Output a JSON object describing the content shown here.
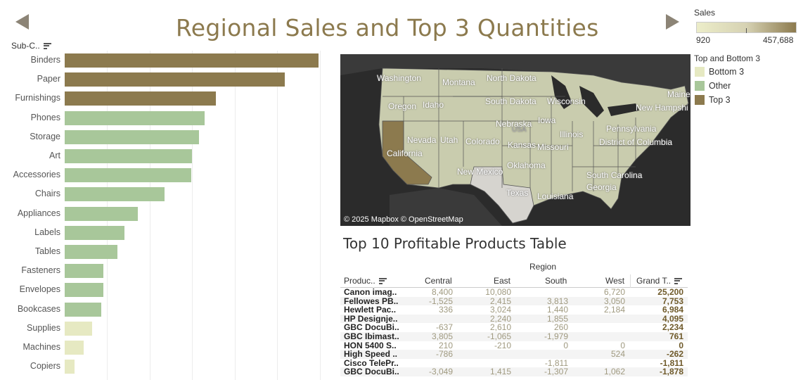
{
  "title": "Regional Sales and Top 3 Quantities",
  "bar_chart": {
    "header": "Sub-C..",
    "colors": {
      "top3": "#8c7a4e",
      "other": "#a8c79a",
      "bottom3": "#e6e9c2"
    },
    "chart_data": {
      "type": "bar",
      "orientation": "horizontal",
      "categories": [
        "Binders",
        "Paper",
        "Furnishings",
        "Phones",
        "Storage",
        "Art",
        "Accessories",
        "Chairs",
        "Appliances",
        "Labels",
        "Tables",
        "Fasteners",
        "Envelopes",
        "Bookcases",
        "Supplies",
        "Machines",
        "Copiers"
      ],
      "values": [
        5974,
        5178,
        3563,
        3289,
        3158,
        3000,
        2976,
        2356,
        1729,
        1400,
        1241,
        914,
        906,
        868,
        647,
        440,
        234
      ],
      "groups": [
        "top3",
        "top3",
        "top3",
        "other",
        "other",
        "other",
        "other",
        "other",
        "other",
        "other",
        "other",
        "other",
        "other",
        "other",
        "bottom3",
        "bottom3",
        "bottom3"
      ],
      "xlim": [
        0,
        6500
      ],
      "grid": true
    }
  },
  "map": {
    "attribution": "© 2025 Mapbox © OpenStreetMap",
    "states": [
      "Washington",
      "Montana",
      "North Dakota",
      "Oregon",
      "Idaho",
      "South Dakota",
      "Wisconsin",
      "Maine",
      "Nebraska",
      "Iowa",
      "USA",
      "New Hampshi",
      "Pennsylvania",
      "Illinois",
      "Nevada",
      "Utah",
      "Colorado",
      "Kansas",
      "Missouri",
      "District of Columbia",
      "California",
      "Oklahoma",
      "New Mexico",
      "South Carolina",
      "Georgia",
      "Texas",
      "Louisiana"
    ]
  },
  "legend": {
    "sales_title": "Sales",
    "sales_min": "920",
    "sales_max": "457,688",
    "group_title": "Top and Bottom 3",
    "groups": [
      {
        "label": "Bottom 3",
        "color": "#e6e9c2"
      },
      {
        "label": "Other",
        "color": "#a8c79a"
      },
      {
        "label": "Top 3",
        "color": "#8c7a4e"
      }
    ]
  },
  "table": {
    "title": "Top 10 Profitable Products Table",
    "region_header": "Region",
    "columns": [
      "Produc..",
      "Central",
      "East",
      "South",
      "West",
      "Grand T.."
    ],
    "rows": [
      {
        "product": "Canon imag..",
        "central": "8,400",
        "east": "10,080",
        "south": "",
        "west": "6,720",
        "grand": "25,200"
      },
      {
        "product": "Fellowes PB..",
        "central": "-1,525",
        "east": "2,415",
        "south": "3,813",
        "west": "3,050",
        "grand": "7,753"
      },
      {
        "product": "Hewlett Pac..",
        "central": "336",
        "east": "3,024",
        "south": "1,440",
        "west": "2,184",
        "grand": "6,984"
      },
      {
        "product": "HP Designje..",
        "central": "",
        "east": "2,240",
        "south": "1,855",
        "west": "",
        "grand": "4,095"
      },
      {
        "product": "GBC DocuBi..",
        "central": "-637",
        "east": "2,610",
        "south": "260",
        "west": "",
        "grand": "2,234"
      },
      {
        "product": "GBC Ibimast..",
        "central": "3,805",
        "east": "-1,065",
        "south": "-1,979",
        "west": "",
        "grand": "761"
      },
      {
        "product": "HON 5400 S..",
        "central": "210",
        "east": "-210",
        "south": "0",
        "west": "0",
        "grand": "0"
      },
      {
        "product": "High Speed ..",
        "central": "-786",
        "east": "",
        "south": "",
        "west": "524",
        "grand": "-262"
      },
      {
        "product": "Cisco TelePr..",
        "central": "",
        "east": "",
        "south": "-1,811",
        "west": "",
        "grand": "-1,811"
      },
      {
        "product": "GBC DocuBi..",
        "central": "-3,049",
        "east": "1,415",
        "south": "-1,307",
        "west": "1,062",
        "grand": "-1,878"
      }
    ]
  }
}
